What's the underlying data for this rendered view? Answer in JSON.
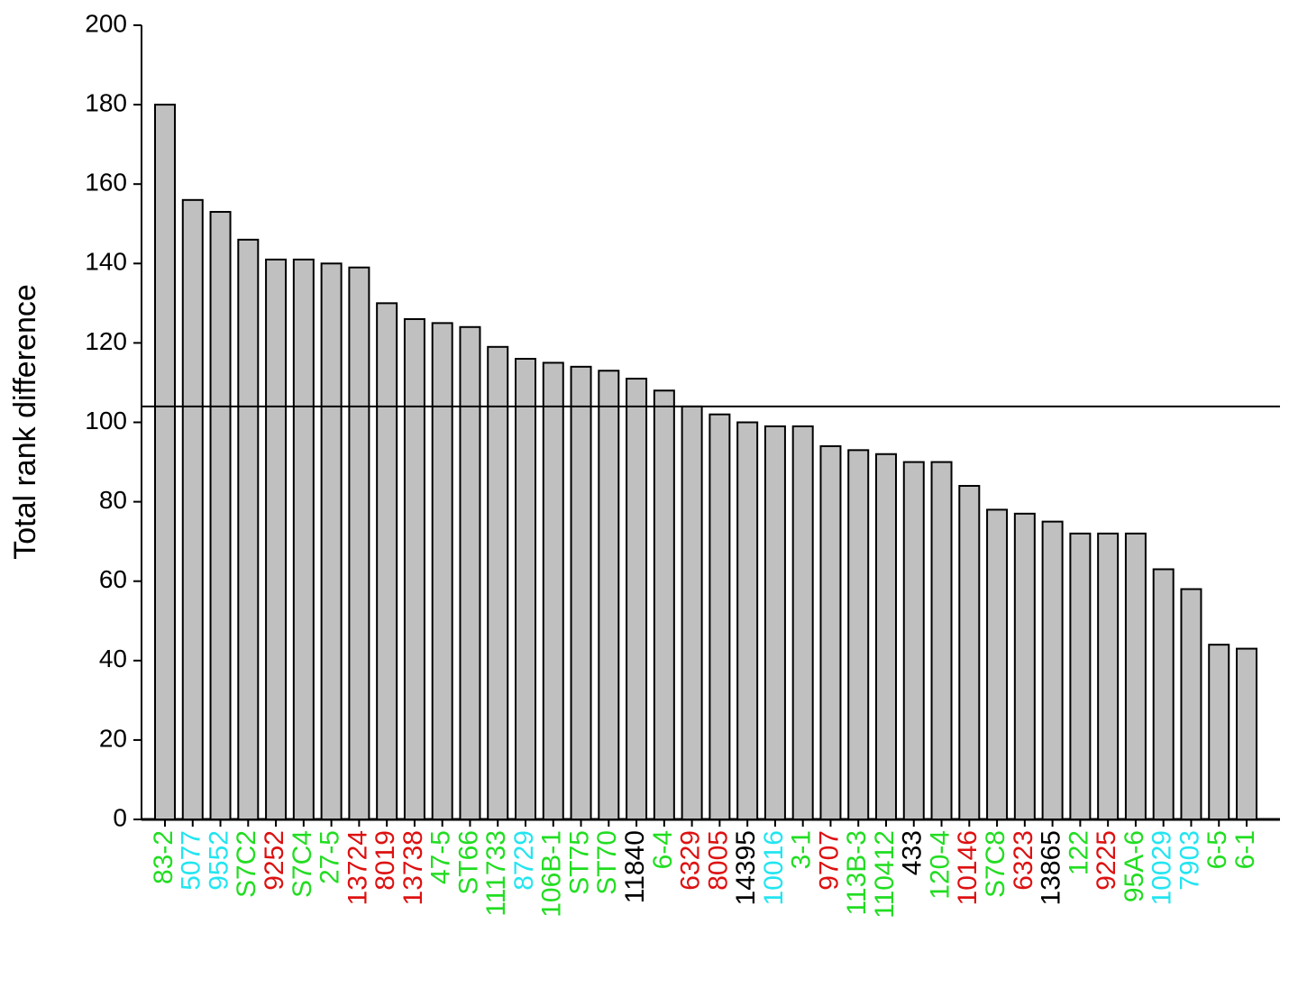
{
  "chart_data": {
    "type": "bar",
    "y_label": "Total rank difference",
    "categories": [
      "83-2",
      "5077",
      "9552",
      "S7C2",
      "9252",
      "S7C4",
      "27-5",
      "13724",
      "8019",
      "13738",
      "47-5",
      "ST66",
      "111733",
      "8729",
      "106B-1",
      "ST75",
      "ST70",
      "11840",
      "6-4",
      "6329",
      "8005",
      "14395",
      "10016",
      "3-1",
      "9707",
      "113B-3",
      "110412",
      "433",
      "120-4",
      "10146",
      "S7C8",
      "6323",
      "13865",
      "122",
      "9225",
      "95A-6",
      "10029",
      "7903",
      "6-5",
      "6-1"
    ],
    "values": [
      180,
      156,
      153,
      146,
      141,
      141,
      140,
      139,
      130,
      126,
      125,
      124,
      119,
      116,
      115,
      114,
      113,
      111,
      108,
      104,
      102,
      100,
      99,
      99,
      94,
      93,
      92,
      90,
      90,
      84,
      78,
      77,
      75,
      72,
      72,
      72,
      63,
      58,
      44,
      43
    ],
    "label_colors": [
      "#22dd22",
      "#22e5f0",
      "#22e5f0",
      "#22dd22",
      "#dd1111",
      "#22dd22",
      "#22dd22",
      "#dd1111",
      "#dd1111",
      "#dd1111",
      "#22dd22",
      "#22dd22",
      "#22dd22",
      "#22e5f0",
      "#22dd22",
      "#22dd22",
      "#22dd22",
      "#000000",
      "#22dd22",
      "#dd1111",
      "#dd1111",
      "#000000",
      "#22e5f0",
      "#22dd22",
      "#dd1111",
      "#22dd22",
      "#22dd22",
      "#000000",
      "#22dd22",
      "#dd1111",
      "#22dd22",
      "#dd1111",
      "#000000",
      "#22dd22",
      "#dd1111",
      "#22dd22",
      "#22e5f0",
      "#22e5f0",
      "#22dd22",
      "#22dd22"
    ],
    "color": "#c0c0c0",
    "reference_line": 104,
    "ylim": [
      0,
      200
    ],
    "yticks": [
      0,
      20,
      40,
      60,
      80,
      100,
      120,
      140,
      160,
      180,
      200
    ]
  }
}
